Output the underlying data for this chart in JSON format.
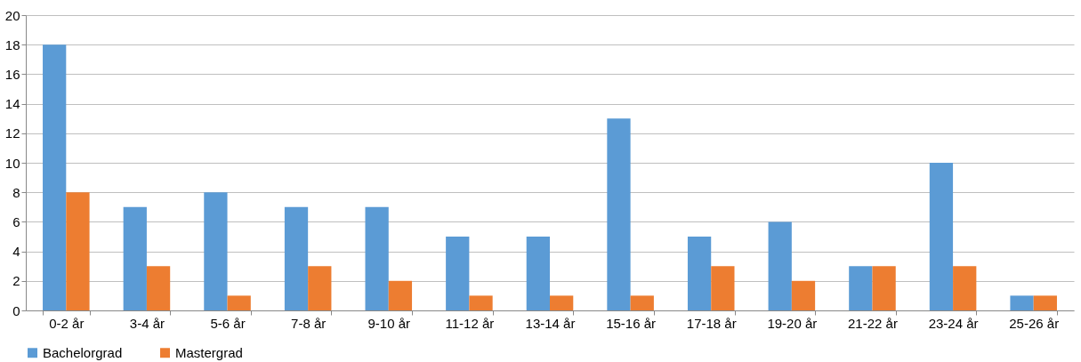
{
  "chart_data": {
    "type": "bar",
    "categories": [
      "0-2 år",
      "3-4 år",
      "5-6 år",
      "7-8 år",
      "9-10 år",
      "11-12 år",
      "13-14 år",
      "15-16 år",
      "17-18 år",
      "19-20 år",
      "21-22 år",
      "23-24 år",
      "25-26 år"
    ],
    "series": [
      {
        "name": "Bachelorgrad",
        "color": "#5b9bd5",
        "values": [
          18,
          7,
          8,
          7,
          7,
          5,
          5,
          13,
          5,
          6,
          3,
          10,
          1
        ]
      },
      {
        "name": "Mastergrad",
        "color": "#ed7d31",
        "values": [
          8,
          3,
          1,
          3,
          2,
          1,
          1,
          1,
          3,
          2,
          3,
          3,
          1
        ]
      }
    ],
    "ylim": [
      0,
      20
    ],
    "yticks": [
      0,
      2,
      4,
      6,
      8,
      10,
      12,
      14,
      16,
      18,
      20
    ],
    "grid": "y",
    "legend": "bottom"
  }
}
